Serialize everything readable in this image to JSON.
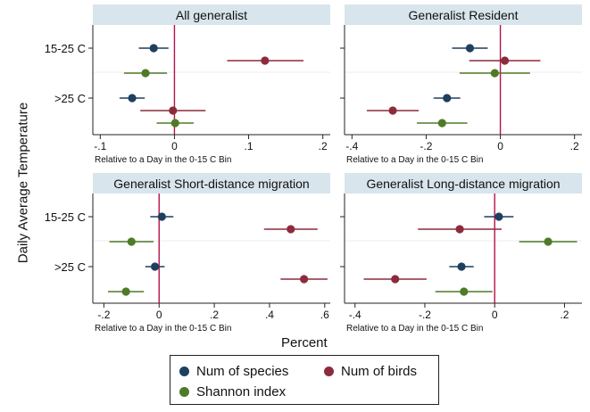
{
  "figure": {
    "y_title": "Daily Average Temperature",
    "x_title": "Percent"
  },
  "colors": {
    "species": "#1f3f5f",
    "birds": "#8c2b3c",
    "shannon": "#4f7a28",
    "refline": "#b5124a",
    "panel_header": "#d8e5ec"
  },
  "legend": {
    "items": [
      {
        "label": "Num of species",
        "color": "#1f3f5f"
      },
      {
        "label": "Num of birds",
        "color": "#8c2b3c"
      },
      {
        "label": "Shannon index",
        "color": "#4f7a28"
      }
    ]
  },
  "chart_data": [
    {
      "type": "scatter",
      "title": "All generalist",
      "xlabel": "Relative to a Day in the 0-15 C Bin",
      "xlim": [
        -0.11,
        0.21
      ],
      "xticks": [
        -0.1,
        0,
        0.1,
        0.2
      ],
      "xtick_labels": [
        "-.1",
        "0",
        ".1",
        ".2"
      ],
      "categories": [
        "15-25 C",
        ">25 C"
      ],
      "show_y_labels": true,
      "series": [
        {
          "name": "Num of species",
          "color": "#1f3f5f",
          "points": [
            {
              "category": "15-25 C",
              "est": -0.028,
              "lo": -0.048,
              "hi": -0.008
            },
            {
              "category": ">25 C",
              "est": -0.057,
              "lo": -0.074,
              "hi": -0.04
            }
          ]
        },
        {
          "name": "Num of birds",
          "color": "#8c2b3c",
          "points": [
            {
              "category": "15-25 C",
              "est": 0.122,
              "lo": 0.071,
              "hi": 0.174
            },
            {
              "category": ">25 C",
              "est": -0.002,
              "lo": -0.046,
              "hi": 0.042
            }
          ]
        },
        {
          "name": "Shannon index",
          "color": "#4f7a28",
          "points": [
            {
              "category": "15-25 C",
              "est": -0.039,
              "lo": -0.068,
              "hi": -0.01
            },
            {
              "category": ">25 C",
              "est": 0.001,
              "lo": -0.024,
              "hi": 0.026
            }
          ]
        }
      ]
    },
    {
      "type": "scatter",
      "title": "Generalist Resident",
      "xlabel": "Relative to a Day in the 0-15 C Bin",
      "xlim": [
        -0.42,
        0.22
      ],
      "xticks": [
        -0.4,
        -0.2,
        0,
        0.2
      ],
      "xtick_labels": [
        "-.4",
        "-.2",
        "0",
        ".2"
      ],
      "categories": [
        "15-25 C",
        ">25 C"
      ],
      "show_y_labels": false,
      "series": [
        {
          "name": "Num of species",
          "color": "#1f3f5f",
          "points": [
            {
              "category": "15-25 C",
              "est": -0.082,
              "lo": -0.13,
              "hi": -0.034
            },
            {
              "category": ">25 C",
              "est": -0.144,
              "lo": -0.18,
              "hi": -0.108
            }
          ]
        },
        {
          "name": "Num of birds",
          "color": "#8c2b3c",
          "points": [
            {
              "category": "15-25 C",
              "est": 0.012,
              "lo": -0.084,
              "hi": 0.108
            },
            {
              "category": ">25 C",
              "est": -0.29,
              "lo": -0.36,
              "hi": -0.22
            }
          ]
        },
        {
          "name": "Shannon index",
          "color": "#4f7a28",
          "points": [
            {
              "category": "15-25 C",
              "est": -0.015,
              "lo": -0.11,
              "hi": 0.08
            },
            {
              "category": ">25 C",
              "est": -0.157,
              "lo": -0.225,
              "hi": -0.089
            }
          ]
        }
      ]
    },
    {
      "type": "scatter",
      "title": "Generalist Short-distance migration",
      "xlabel": "Relative to a Day in the 0-15 C Bin",
      "xlim": [
        -0.24,
        0.62
      ],
      "xticks": [
        -0.2,
        0,
        0.2,
        0.4,
        0.6
      ],
      "xtick_labels": [
        "-.2",
        "0",
        ".2",
        ".4",
        ".6"
      ],
      "categories": [
        "15-25 C",
        ">25 C"
      ],
      "show_y_labels": true,
      "series": [
        {
          "name": "Num of species",
          "color": "#1f3f5f",
          "points": [
            {
              "category": "15-25 C",
              "est": 0.01,
              "lo": -0.032,
              "hi": 0.052
            },
            {
              "category": ">25 C",
              "est": -0.015,
              "lo": -0.05,
              "hi": 0.02
            }
          ]
        },
        {
          "name": "Num of birds",
          "color": "#8c2b3c",
          "points": [
            {
              "category": "15-25 C",
              "est": 0.477,
              "lo": 0.38,
              "hi": 0.574
            },
            {
              "category": ">25 C",
              "est": 0.525,
              "lo": 0.44,
              "hi": 0.61
            }
          ]
        },
        {
          "name": "Shannon index",
          "color": "#4f7a28",
          "points": [
            {
              "category": "15-25 C",
              "est": -0.1,
              "lo": -0.18,
              "hi": -0.02
            },
            {
              "category": ">25 C",
              "est": -0.12,
              "lo": -0.185,
              "hi": -0.055
            }
          ]
        }
      ]
    },
    {
      "type": "scatter",
      "title": "Generalist Long-distance migration",
      "xlabel": "Relative to a Day in the 0-15 C Bin",
      "xlim": [
        -0.43,
        0.25
      ],
      "xticks": [
        -0.4,
        -0.2,
        0,
        0.2
      ],
      "xtick_labels": [
        "-.4",
        "-.2",
        "0",
        ".2"
      ],
      "categories": [
        "15-25 C",
        ">25 C"
      ],
      "show_y_labels": false,
      "series": [
        {
          "name": "Num of species",
          "color": "#1f3f5f",
          "points": [
            {
              "category": "15-25 C",
              "est": 0.012,
              "lo": -0.03,
              "hi": 0.054
            },
            {
              "category": ">25 C",
              "est": -0.095,
              "lo": -0.13,
              "hi": -0.06
            }
          ]
        },
        {
          "name": "Num of birds",
          "color": "#8c2b3c",
          "points": [
            {
              "category": "15-25 C",
              "est": -0.1,
              "lo": -0.22,
              "hi": 0.02
            },
            {
              "category": ">25 C",
              "est": -0.285,
              "lo": -0.375,
              "hi": -0.195
            }
          ]
        },
        {
          "name": "Shannon index",
          "color": "#4f7a28",
          "points": [
            {
              "category": "15-25 C",
              "est": 0.153,
              "lo": 0.07,
              "hi": 0.236
            },
            {
              "category": ">25 C",
              "est": -0.088,
              "lo": -0.17,
              "hi": -0.006
            }
          ]
        }
      ]
    }
  ]
}
